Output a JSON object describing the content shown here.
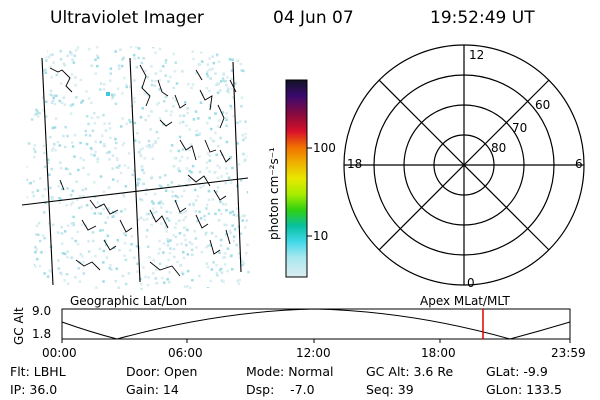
{
  "header": {
    "instrument": "Ultraviolet Imager",
    "date": "04 Jun 07",
    "time": "19:52:49 UT"
  },
  "colorbar": {
    "unit_label": "photon cm⁻²s⁻¹",
    "ticks": [
      "100",
      "10"
    ],
    "colors": [
      "#121224",
      "#3a0a6e",
      "#8c0a3c",
      "#d8102a",
      "#f07000",
      "#f0b000",
      "#e8e800",
      "#a8ec00",
      "#30d010",
      "#08c0a0",
      "#40d8e8",
      "#a8e8ef",
      "#dcecf0"
    ]
  },
  "polar": {
    "mlt_labels": {
      "top": "12",
      "bottom": "0",
      "left": "18",
      "right": "6"
    },
    "lat_labels": [
      "60",
      "70",
      "80"
    ]
  },
  "altitude_plot": {
    "ylabel": "GC Alt",
    "yticks": [
      "9.0",
      "1.8"
    ],
    "left_caption": "Geographic Lat/Lon",
    "right_caption": "Apex MLat/MLT",
    "xticks": [
      "00:00",
      "06:00",
      "12:00",
      "18:00",
      "23:59"
    ],
    "marker_color": "#e00000"
  },
  "info": {
    "row1": [
      "Flt: LBHL",
      "Door: Open",
      "Mode: Normal",
      "GC Alt: 3.6 Re",
      "GLat:  -9.9"
    ],
    "row2": [
      "IP: 36.0",
      "Gain: 14",
      "Dsp:    -7.0",
      "Seq: 39",
      "GLon: 133.5"
    ]
  }
}
